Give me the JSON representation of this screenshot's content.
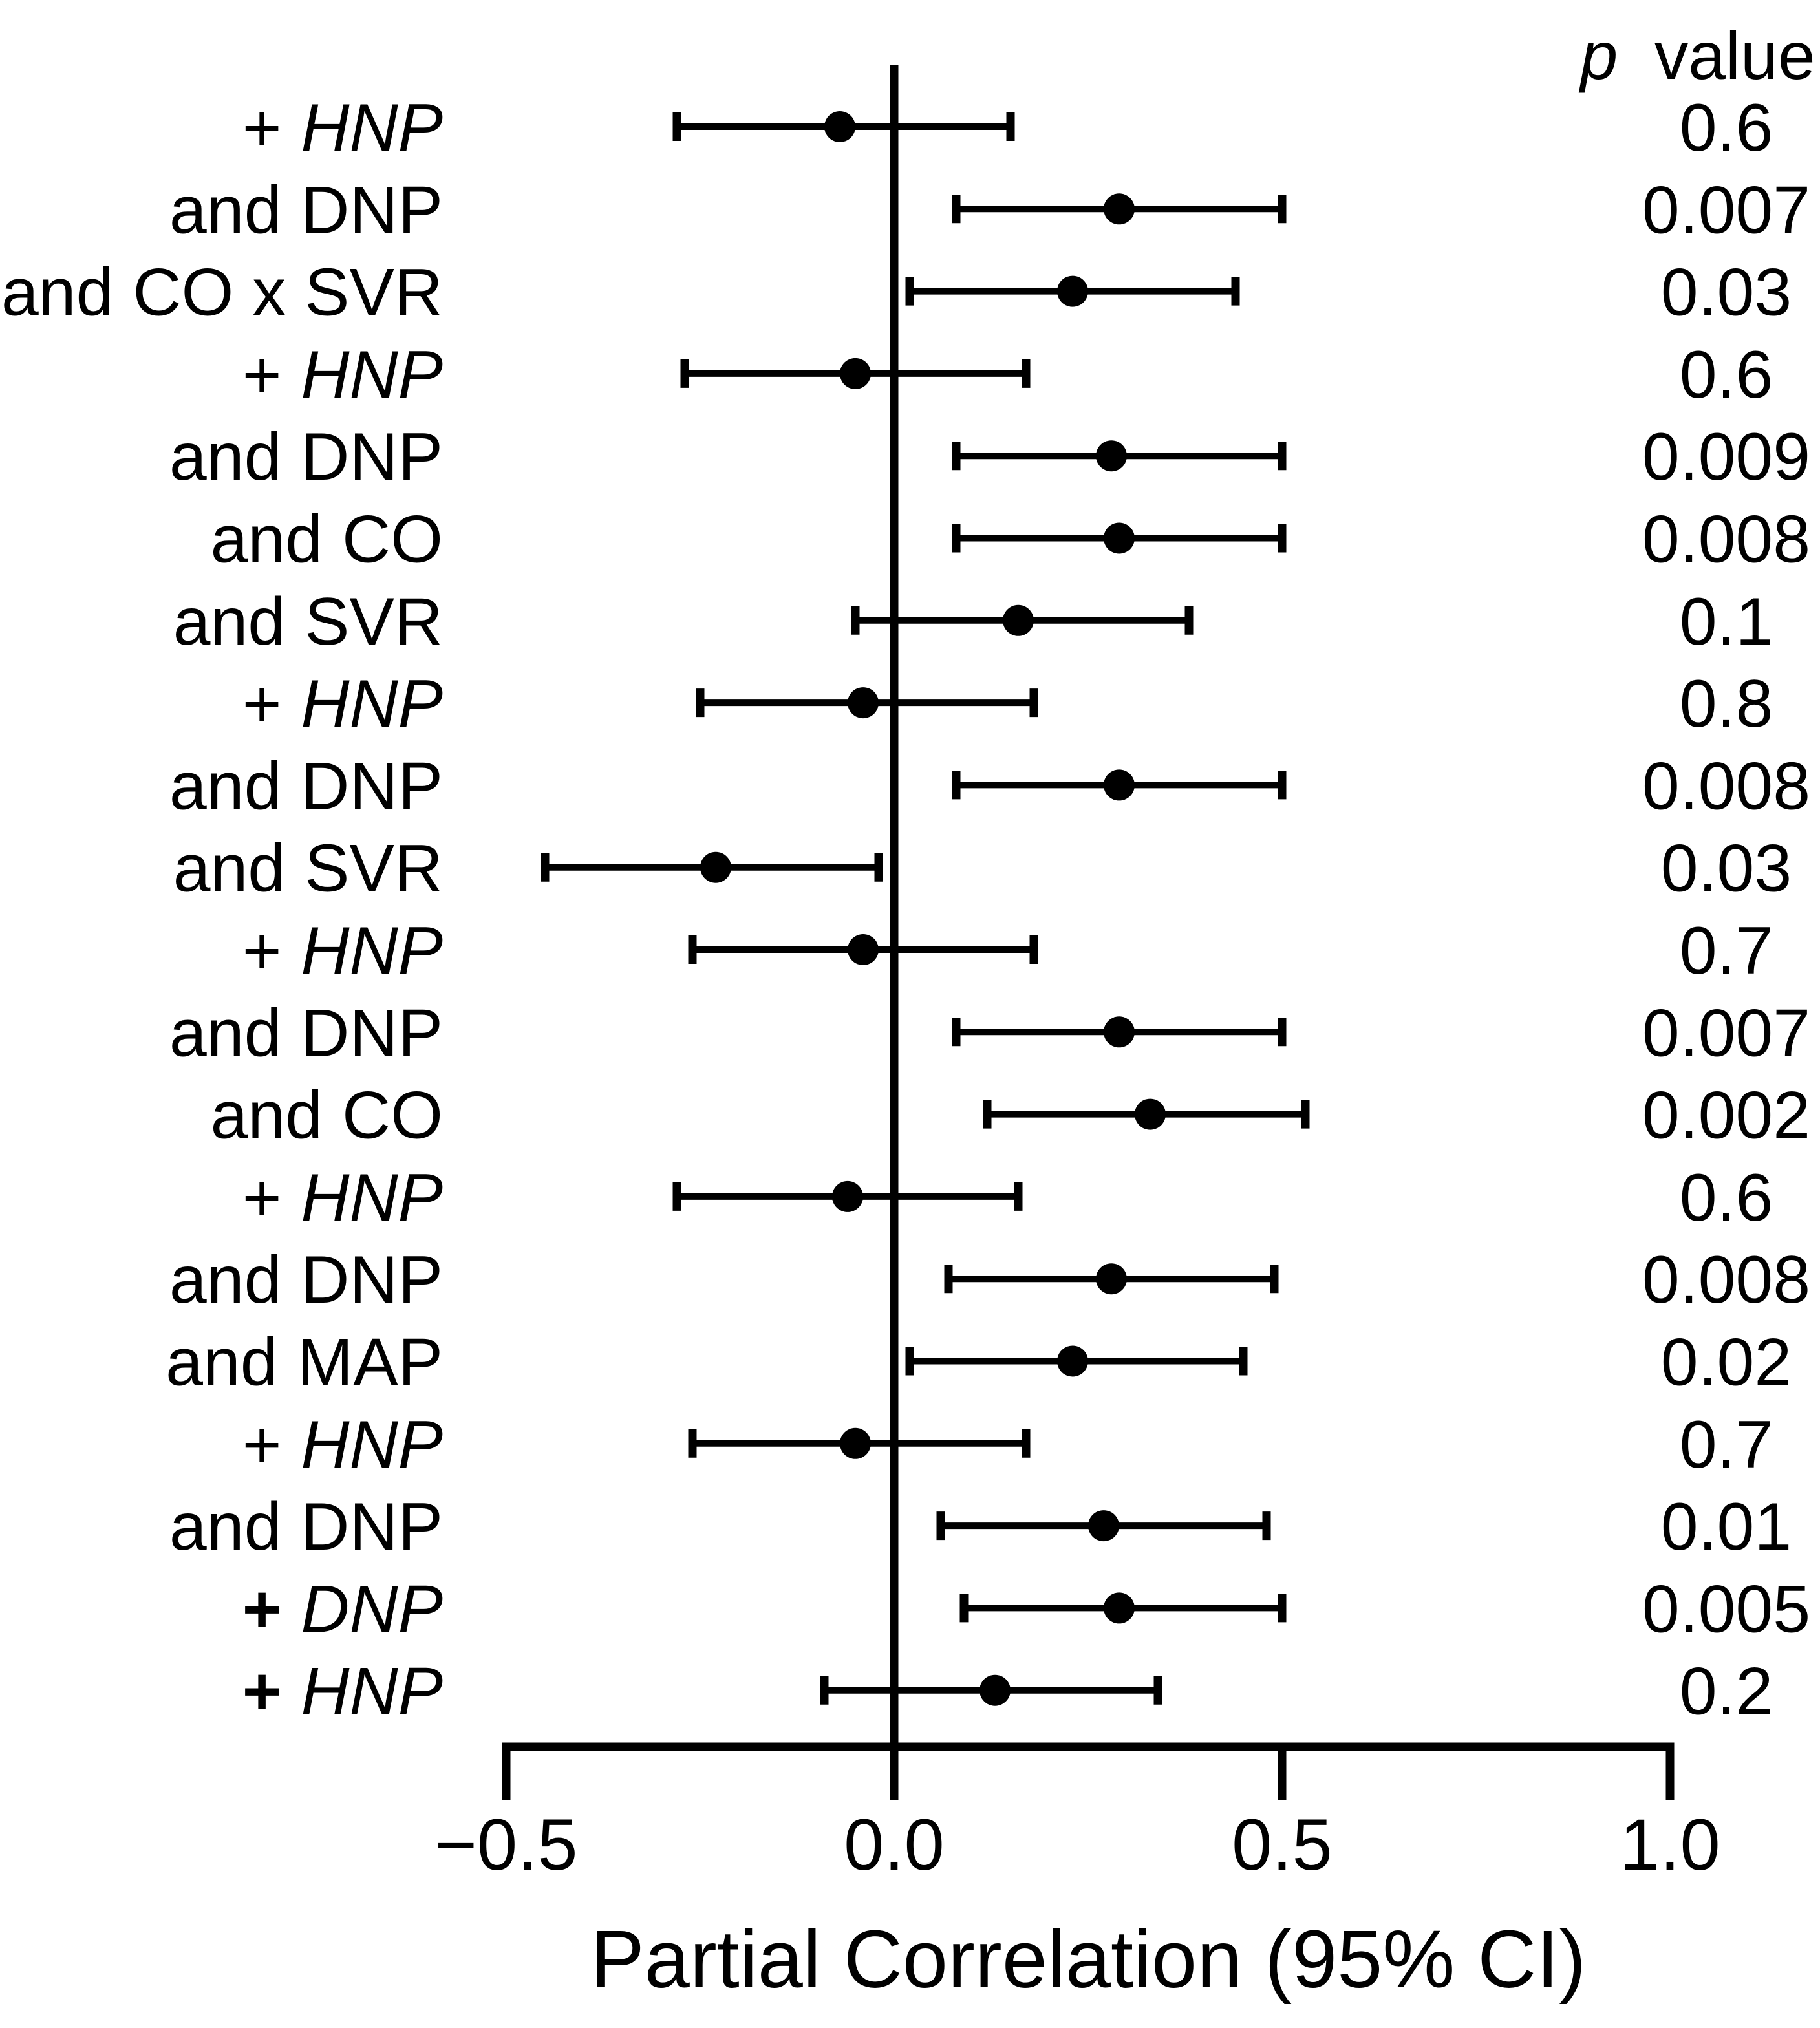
{
  "figure": {
    "background_color": "#ffffff",
    "ink_color": "#000000",
    "p_header_symbol": "p",
    "p_header_text": "value"
  },
  "chart_data": {
    "type": "forest",
    "title": "",
    "xlabel": "Partial Correlation (95% CI)",
    "p_column_header": "p value",
    "xlim": [
      -0.5,
      1.0
    ],
    "zero_line_x": 0.0,
    "grid": false,
    "x_ticks": [
      -0.5,
      0.0,
      0.5,
      1.0
    ],
    "x_tick_labels": [
      "−0.5",
      "0.0",
      "0.5",
      "1.0"
    ],
    "rows": [
      {
        "label": "+ HNP",
        "prefix": "+",
        "name": "HNP",
        "name_italic": true,
        "prefix_bold": false,
        "estimate": -0.07,
        "ci_low": -0.28,
        "ci_high": 0.15,
        "p_value": "0.6"
      },
      {
        "label": "and DNP",
        "prefix": "and",
        "name": "DNP",
        "name_italic": false,
        "prefix_bold": false,
        "estimate": 0.29,
        "ci_low": 0.08,
        "ci_high": 0.5,
        "p_value": "0.007"
      },
      {
        "label": "and CO x SVR",
        "prefix": "and",
        "name": "CO x SVR",
        "name_italic": false,
        "prefix_bold": false,
        "estimate": 0.23,
        "ci_low": 0.02,
        "ci_high": 0.44,
        "p_value": "0.03"
      },
      {
        "label": "+ HNP",
        "prefix": "+",
        "name": "HNP",
        "name_italic": true,
        "prefix_bold": false,
        "estimate": -0.05,
        "ci_low": -0.27,
        "ci_high": 0.17,
        "p_value": "0.6"
      },
      {
        "label": "and DNP",
        "prefix": "and",
        "name": "DNP",
        "name_italic": false,
        "prefix_bold": false,
        "estimate": 0.28,
        "ci_low": 0.08,
        "ci_high": 0.5,
        "p_value": "0.009"
      },
      {
        "label": "and CO",
        "prefix": "and",
        "name": "CO",
        "name_italic": false,
        "prefix_bold": false,
        "estimate": 0.29,
        "ci_low": 0.08,
        "ci_high": 0.5,
        "p_value": "0.008"
      },
      {
        "label": "and SVR",
        "prefix": "and",
        "name": "SVR",
        "name_italic": false,
        "prefix_bold": false,
        "estimate": 0.16,
        "ci_low": -0.05,
        "ci_high": 0.38,
        "p_value": "0.1"
      },
      {
        "label": "+ HNP",
        "prefix": "+",
        "name": "HNP",
        "name_italic": true,
        "prefix_bold": false,
        "estimate": -0.04,
        "ci_low": -0.25,
        "ci_high": 0.18,
        "p_value": "0.8"
      },
      {
        "label": "and DNP",
        "prefix": "and",
        "name": "DNP",
        "name_italic": false,
        "prefix_bold": false,
        "estimate": 0.29,
        "ci_low": 0.08,
        "ci_high": 0.5,
        "p_value": "0.008"
      },
      {
        "label": "and SVR",
        "prefix": "and",
        "name": "SVR",
        "name_italic": false,
        "prefix_bold": false,
        "estimate": -0.23,
        "ci_low": -0.45,
        "ci_high": -0.02,
        "p_value": "0.03"
      },
      {
        "label": "+ HNP",
        "prefix": "+",
        "name": "HNP",
        "name_italic": true,
        "prefix_bold": false,
        "estimate": -0.04,
        "ci_low": -0.26,
        "ci_high": 0.18,
        "p_value": "0.7"
      },
      {
        "label": "and DNP",
        "prefix": "and",
        "name": "DNP",
        "name_italic": false,
        "prefix_bold": false,
        "estimate": 0.29,
        "ci_low": 0.08,
        "ci_high": 0.5,
        "p_value": "0.007"
      },
      {
        "label": "and CO",
        "prefix": "and",
        "name": "CO",
        "name_italic": false,
        "prefix_bold": false,
        "estimate": 0.33,
        "ci_low": 0.12,
        "ci_high": 0.53,
        "p_value": "0.002"
      },
      {
        "label": "+ HNP",
        "prefix": "+",
        "name": "HNP",
        "name_italic": true,
        "prefix_bold": false,
        "estimate": -0.06,
        "ci_low": -0.28,
        "ci_high": 0.16,
        "p_value": "0.6"
      },
      {
        "label": "and DNP",
        "prefix": "and",
        "name": "DNP",
        "name_italic": false,
        "prefix_bold": false,
        "estimate": 0.28,
        "ci_low": 0.07,
        "ci_high": 0.49,
        "p_value": "0.008"
      },
      {
        "label": "and MAP",
        "prefix": "and",
        "name": "MAP",
        "name_italic": false,
        "prefix_bold": false,
        "estimate": 0.23,
        "ci_low": 0.02,
        "ci_high": 0.45,
        "p_value": "0.02"
      },
      {
        "label": "+ HNP",
        "prefix": "+",
        "name": "HNP",
        "name_italic": true,
        "prefix_bold": false,
        "estimate": -0.05,
        "ci_low": -0.26,
        "ci_high": 0.17,
        "p_value": "0.7"
      },
      {
        "label": "and DNP",
        "prefix": "and",
        "name": "DNP",
        "name_italic": false,
        "prefix_bold": false,
        "estimate": 0.27,
        "ci_low": 0.06,
        "ci_high": 0.48,
        "p_value": "0.01"
      },
      {
        "label": "+ DNP",
        "prefix": "+",
        "name": "DNP",
        "name_italic": true,
        "prefix_bold": true,
        "estimate": 0.29,
        "ci_low": 0.09,
        "ci_high": 0.5,
        "p_value": "0.005"
      },
      {
        "label": "+ HNP",
        "prefix": "+",
        "name": "HNP",
        "name_italic": true,
        "prefix_bold": true,
        "estimate": 0.13,
        "ci_low": -0.09,
        "ci_high": 0.34,
        "p_value": "0.2"
      }
    ]
  }
}
